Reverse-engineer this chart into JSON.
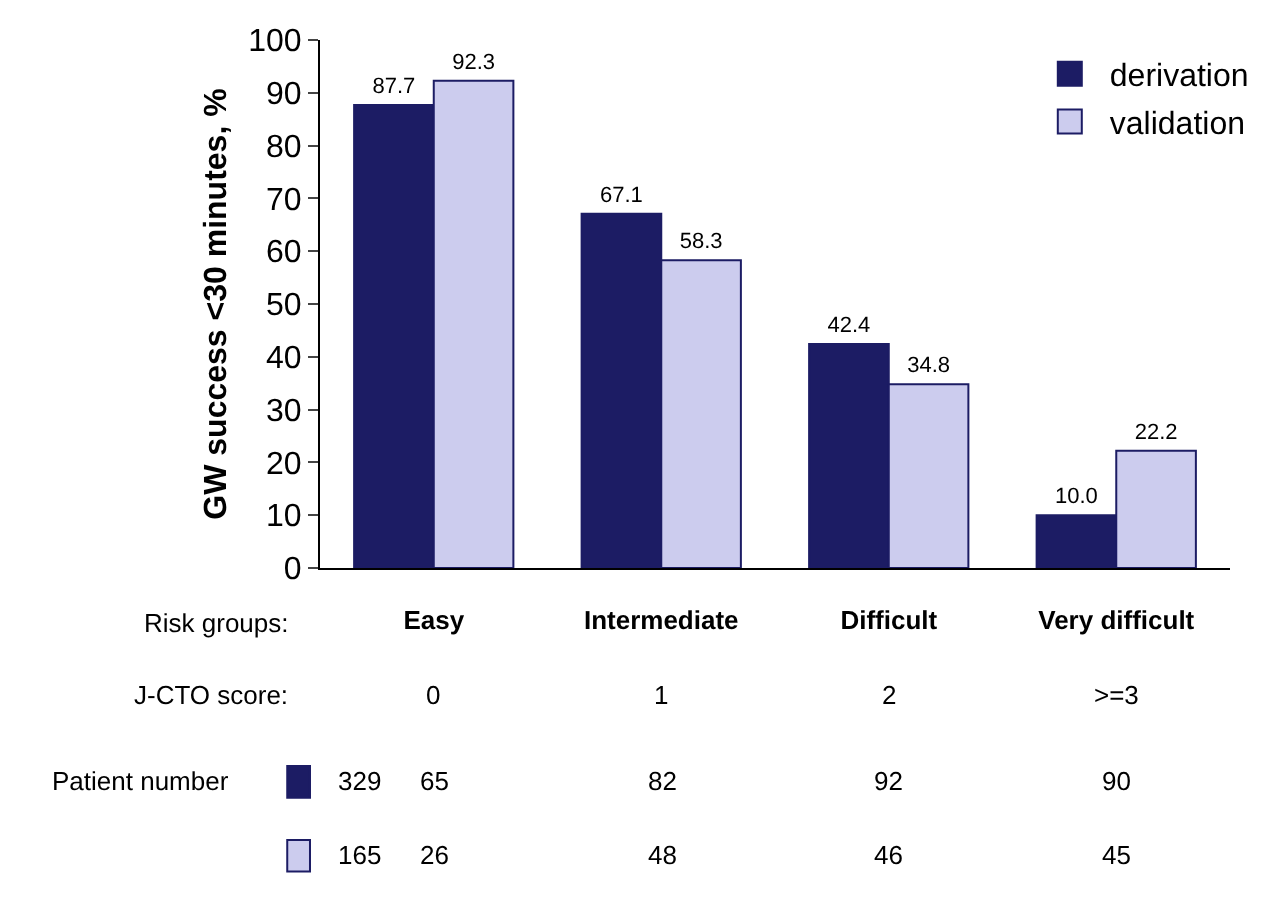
{
  "chart_data": {
    "type": "bar",
    "ylabel": "GW success <30 minutes, %",
    "categories": [
      "Easy",
      "Intermediate",
      "Difficult",
      "Very difficult"
    ],
    "series": [
      {
        "name": "derivation",
        "color": "#1c1c64",
        "values": [
          87.7,
          67.1,
          42.4,
          10.0
        ],
        "value_labels": [
          "87.7",
          "67.1",
          "42.4",
          "10.0"
        ]
      },
      {
        "name": "validation",
        "color": "#ccccee",
        "values": [
          92.3,
          58.3,
          34.8,
          22.2
        ],
        "value_labels": [
          "92.3",
          "58.3",
          "34.8",
          "22.2"
        ]
      }
    ],
    "ylim": [
      0,
      100
    ],
    "yticks": [
      0,
      10,
      20,
      30,
      40,
      50,
      60,
      70,
      80,
      90,
      100
    ],
    "grid": false,
    "legend": "top right",
    "annotations": [
      "Risk groups:",
      "J-CTO score:",
      "0",
      "1",
      "2",
      ">=3",
      "Patient number",
      "329",
      "65",
      "82",
      "92",
      "90",
      "165",
      "26",
      "48",
      "46",
      "45"
    ]
  }
}
